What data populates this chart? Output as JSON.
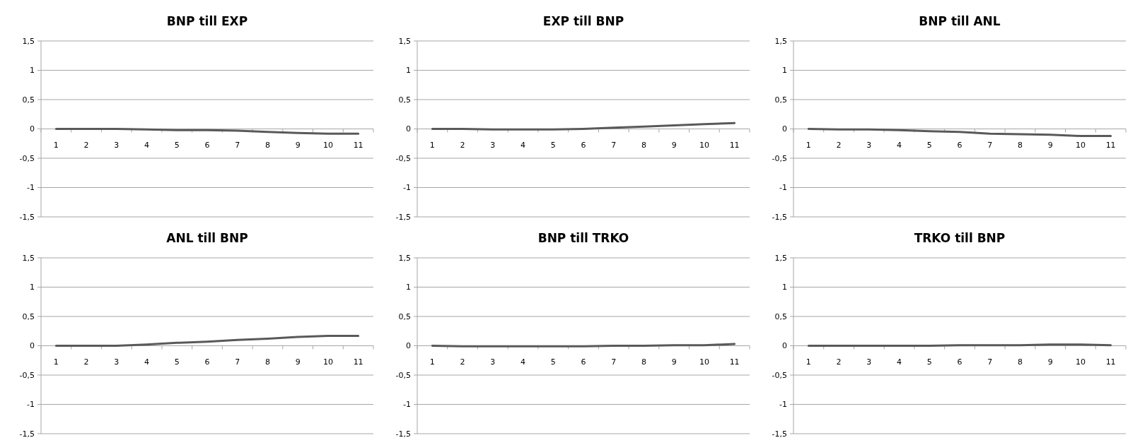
{
  "chart_data": [
    {
      "type": "line",
      "title": "BNP till EXP",
      "categories": [
        "1",
        "2",
        "3",
        "4",
        "5",
        "6",
        "7",
        "8",
        "9",
        "10",
        "11"
      ],
      "values": [
        0,
        0,
        0,
        -0.01,
        -0.02,
        -0.02,
        -0.03,
        -0.05,
        -0.07,
        -0.08,
        -0.08
      ],
      "color": "#595959",
      "ylim": [
        -1.5,
        1.5
      ],
      "yticks": [
        {
          "value": -1.5,
          "label": "-1,5"
        },
        -1,
        {
          "value": -0.5,
          "label": "-0,5"
        },
        0,
        {
          "value": 0.5,
          "label": "0,5"
        },
        1,
        {
          "value": 1.5,
          "label": "1,5"
        }
      ],
      "grid": "y"
    },
    {
      "type": "line",
      "title": "EXP till BNP",
      "categories": [
        "1",
        "2",
        "3",
        "4",
        "5",
        "6",
        "7",
        "8",
        "9",
        "10",
        "11"
      ],
      "values": [
        0,
        0,
        -0.01,
        -0.01,
        -0.01,
        0,
        0.02,
        0.04,
        0.06,
        0.08,
        0.1
      ],
      "color": "#595959",
      "ylim": [
        -1.5,
        1.5
      ],
      "yticks": [
        {
          "value": -1.5,
          "label": "-1,5"
        },
        -1,
        {
          "value": -0.5,
          "label": "-0,5"
        },
        0,
        {
          "value": 0.5,
          "label": "0,5"
        },
        1,
        {
          "value": 1.5,
          "label": "1,5"
        }
      ],
      "grid": "y"
    },
    {
      "type": "line",
      "title": "BNP till ANL",
      "categories": [
        "1",
        "2",
        "3",
        "4",
        "5",
        "6",
        "7",
        "8",
        "9",
        "10",
        "11"
      ],
      "values": [
        0,
        -0.01,
        -0.01,
        -0.02,
        -0.04,
        -0.05,
        -0.08,
        -0.09,
        -0.1,
        -0.12,
        -0.12
      ],
      "color": "#595959",
      "ylim": [
        -1.5,
        1.5
      ],
      "yticks": [
        {
          "value": -1.5,
          "label": "-1,5"
        },
        -1,
        {
          "value": -0.5,
          "label": "-0,5"
        },
        0,
        {
          "value": 0.5,
          "label": "0,5"
        },
        1,
        {
          "value": 1.5,
          "label": "1,5"
        }
      ],
      "grid": "y"
    },
    {
      "type": "line",
      "title": "ANL till BNP",
      "categories": [
        "1",
        "2",
        "3",
        "4",
        "5",
        "6",
        "7",
        "8",
        "9",
        "10",
        "11"
      ],
      "values": [
        0,
        0,
        0,
        0.02,
        0.05,
        0.07,
        0.1,
        0.12,
        0.15,
        0.17,
        0.17
      ],
      "color": "#595959",
      "ylim": [
        -1.5,
        1.5
      ],
      "yticks": [
        {
          "value": -1.5,
          "label": "-1,5"
        },
        -1,
        {
          "value": -0.5,
          "label": "-0,5"
        },
        0,
        {
          "value": 0.5,
          "label": "0,5"
        },
        1,
        {
          "value": 1.5,
          "label": "1,5"
        }
      ],
      "grid": "y"
    },
    {
      "type": "line",
      "title": "BNP till TRKO",
      "categories": [
        "1",
        "2",
        "3",
        "4",
        "5",
        "6",
        "7",
        "8",
        "9",
        "10",
        "11"
      ],
      "values": [
        0,
        -0.01,
        -0.01,
        -0.01,
        -0.01,
        -0.01,
        0,
        0,
        0.01,
        0.01,
        0.03
      ],
      "color": "#595959",
      "ylim": [
        -1.5,
        1.5
      ],
      "yticks": [
        {
          "value": -1.5,
          "label": "-1,5"
        },
        -1,
        {
          "value": -0.5,
          "label": "-0,5"
        },
        0,
        {
          "value": 0.5,
          "label": "0,5"
        },
        1,
        {
          "value": 1.5,
          "label": "1,5"
        }
      ],
      "grid": "y"
    },
    {
      "type": "line",
      "title": "TRKO till BNP",
      "categories": [
        "1",
        "2",
        "3",
        "4",
        "5",
        "6",
        "7",
        "8",
        "9",
        "10",
        "11"
      ],
      "values": [
        0,
        0,
        0,
        0,
        0,
        0.01,
        0.01,
        0.01,
        0.02,
        0.02,
        0.01
      ],
      "color": "#595959",
      "ylim": [
        -1.5,
        1.5
      ],
      "yticks": [
        {
          "value": -1.5,
          "label": "-1,5"
        },
        -1,
        {
          "value": -0.5,
          "label": "-0,5"
        },
        0,
        {
          "value": 0.5,
          "label": "0,5"
        },
        1,
        {
          "value": 1.5,
          "label": "1,5"
        }
      ],
      "grid": "y"
    }
  ]
}
